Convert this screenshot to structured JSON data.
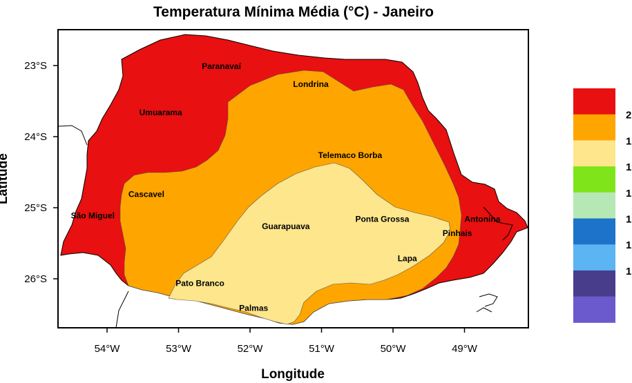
{
  "title": "Temperatura Mínima Média (°C) - Janeiro",
  "axes": {
    "xlabel": "Longitude",
    "ylabel": "Latitude",
    "x_ticks": [
      "54°W",
      "53°W",
      "52°W",
      "51°W",
      "50°W",
      "49°W"
    ],
    "y_ticks": [
      "23°S",
      "24°S",
      "25°S",
      "26°S"
    ]
  },
  "cities": [
    {
      "name": "Paranavaí",
      "lon": -52.4,
      "lat": -23.05
    },
    {
      "name": "Londrina",
      "lon": -51.15,
      "lat": -23.3
    },
    {
      "name": "Umuarama",
      "lon": -53.25,
      "lat": -23.7
    },
    {
      "name": "Telemaco Borba",
      "lon": -50.6,
      "lat": -24.3
    },
    {
      "name": "Cascavel",
      "lon": -53.45,
      "lat": -24.85
    },
    {
      "name": "São Miguel",
      "lon": -54.2,
      "lat": -25.15
    },
    {
      "name": "Ponta Grossa",
      "lon": -50.15,
      "lat": -25.2
    },
    {
      "name": "Antonina",
      "lon": -48.75,
      "lat": -25.2
    },
    {
      "name": "Guarapuava",
      "lon": -51.5,
      "lat": -25.3
    },
    {
      "name": "Pinhais",
      "lon": -49.1,
      "lat": -25.4
    },
    {
      "name": "Lapa",
      "lon": -49.8,
      "lat": -25.75
    },
    {
      "name": "Pato Branco",
      "lon": -52.7,
      "lat": -26.1
    },
    {
      "name": "Palmas",
      "lon": -51.95,
      "lat": -26.45
    }
  ],
  "legend": {
    "colors": [
      "#e81010",
      "#ffa500",
      "#fde68c",
      "#7fe41a",
      "#b6e8b6",
      "#1c73c9",
      "#5cb4f2",
      "#483d8b",
      "#6a5acd"
    ],
    "labels": [
      "2",
      "1",
      "1",
      "1",
      "1",
      "1",
      "1",
      "",
      ""
    ]
  }
}
